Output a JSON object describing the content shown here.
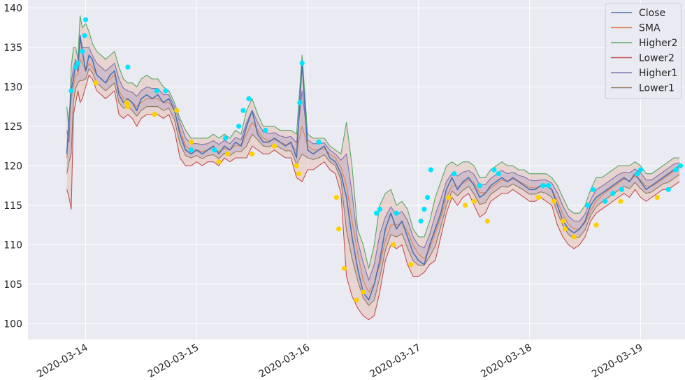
{
  "chart_data": {
    "type": "line",
    "title": "",
    "xlabel": "",
    "ylabel": "",
    "ylim": [
      98,
      141
    ],
    "xlim": [
      -0.52,
      5.4
    ],
    "grid": true,
    "legend_position": "top-right",
    "x_ticks": [
      {
        "value": 0,
        "label": "2020-03-14"
      },
      {
        "value": 1,
        "label": "2020-03-15"
      },
      {
        "value": 2,
        "label": "2020-03-16"
      },
      {
        "value": 3,
        "label": "2020-03-17"
      },
      {
        "value": 4,
        "label": "2020-03-18"
      },
      {
        "value": 5,
        "label": "2020-03-19"
      }
    ],
    "y_ticks": [
      100,
      105,
      110,
      115,
      120,
      125,
      130,
      135,
      140
    ],
    "x_unit": "days relative to 2020-03-14",
    "x": [
      -0.17,
      -0.15,
      -0.13,
      -0.11,
      -0.09,
      -0.07,
      -0.05,
      -0.03,
      0.0,
      0.03,
      0.06,
      0.1,
      0.14,
      0.18,
      0.22,
      0.26,
      0.3,
      0.34,
      0.38,
      0.42,
      0.46,
      0.5,
      0.55,
      0.6,
      0.65,
      0.7,
      0.75,
      0.8,
      0.85,
      0.9,
      0.95,
      1.0,
      1.05,
      1.1,
      1.15,
      1.2,
      1.25,
      1.3,
      1.35,
      1.4,
      1.45,
      1.5,
      1.55,
      1.6,
      1.65,
      1.7,
      1.75,
      1.8,
      1.85,
      1.9,
      1.95,
      2.0,
      2.05,
      2.1,
      2.15,
      2.2,
      2.25,
      2.3,
      2.35,
      2.4,
      2.45,
      2.5,
      2.55,
      2.6,
      2.65,
      2.7,
      2.75,
      2.8,
      2.85,
      2.9,
      2.95,
      3.0,
      3.05,
      3.1,
      3.15,
      3.2,
      3.25,
      3.3,
      3.35,
      3.4,
      3.45,
      3.5,
      3.55,
      3.6,
      3.65,
      3.7,
      3.75,
      3.8,
      3.85,
      3.9,
      3.95,
      4.0,
      4.05,
      4.1,
      4.15,
      4.2,
      4.25,
      4.3,
      4.35,
      4.4,
      4.45,
      4.5,
      4.55,
      4.6,
      4.65,
      4.7,
      4.75,
      4.8,
      4.85,
      4.9,
      4.95,
      5.0,
      5.05,
      5.1,
      5.15,
      5.2,
      5.25,
      5.3,
      5.35
    ],
    "series": [
      {
        "name": "Close",
        "color": "#4c72b0",
        "values": [
          121.5,
          126,
          129.5,
          131,
          133,
          132,
          136.5,
          134.5,
          132,
          134,
          133.5,
          131.5,
          131,
          130.5,
          131.5,
          132,
          129,
          128,
          128.5,
          128,
          127,
          128.5,
          129,
          128.5,
          129,
          128,
          128.5,
          127,
          124,
          122,
          121.5,
          122,
          121.5,
          122,
          122.5,
          121.5,
          122.5,
          122,
          123,
          122.5,
          125,
          127,
          124,
          123,
          123,
          123.5,
          123,
          122.5,
          123,
          121,
          133,
          122,
          121.5,
          122,
          122.5,
          121,
          120.5,
          119,
          116,
          111,
          107,
          104,
          103,
          105,
          108,
          112,
          114,
          112,
          113,
          111,
          109,
          108,
          107.5,
          110,
          112,
          114,
          117,
          118.5,
          117,
          118,
          118.5,
          117.5,
          116,
          116.5,
          117.5,
          118,
          118.5,
          118,
          118.5,
          118,
          117.5,
          117,
          117,
          117.5,
          117.5,
          117,
          115,
          113,
          112,
          111.5,
          112,
          113,
          115,
          116,
          116.5,
          117,
          117.5,
          118,
          118.5,
          118,
          119,
          118,
          117,
          117.5,
          118,
          118.5,
          119,
          119.5,
          120
        ]
      },
      {
        "name": "SMA",
        "color": "#dd8452",
        "values": [
          121,
          125,
          128.5,
          130,
          131.5,
          131.5,
          133.5,
          133,
          132,
          133,
          132.5,
          131.5,
          131,
          130.5,
          131,
          131.5,
          129.5,
          128.5,
          128.5,
          128,
          127.5,
          128,
          128.5,
          128.5,
          128.5,
          128,
          128,
          127,
          124.5,
          122.5,
          122,
          122,
          121.8,
          122,
          122.2,
          121.8,
          122.2,
          122,
          122.6,
          122.5,
          124,
          125.5,
          124.5,
          123.5,
          123.2,
          123.3,
          123,
          122.7,
          122.8,
          121.8,
          125,
          122.5,
          122,
          122,
          122.2,
          121.5,
          121,
          119.8,
          117.5,
          113,
          109,
          105.5,
          104,
          105,
          107.5,
          110.5,
          112.5,
          112.5,
          112.8,
          111.7,
          110,
          108.8,
          108.2,
          109.5,
          111.5,
          113.5,
          116,
          117.5,
          117.3,
          117.8,
          118.2,
          117.8,
          116.6,
          116.6,
          117.2,
          117.7,
          118.2,
          118,
          118.3,
          118.1,
          117.7,
          117.3,
          117.2,
          117.4,
          117.4,
          117,
          115.6,
          113.8,
          112.6,
          112,
          112,
          112.8,
          114.3,
          115.5,
          116.2,
          116.8,
          117.3,
          117.8,
          118.3,
          118.1,
          118.7,
          118.2,
          117.4,
          117.4,
          117.8,
          118.3,
          118.8,
          119.3,
          119.7
        ]
      },
      {
        "name": "Higher2",
        "color": "#55a868",
        "values": [
          127.5,
          124.5,
          132.5,
          135,
          135,
          133.5,
          139,
          137.5,
          138,
          137,
          135.5,
          134.5,
          134,
          133.5,
          134,
          134.5,
          132.5,
          131,
          130.5,
          130.5,
          130,
          131,
          131.5,
          131,
          131,
          130,
          129.5,
          128,
          126,
          124.5,
          123.5,
          123.5,
          123.5,
          123.5,
          124,
          123.5,
          124,
          123.5,
          124.5,
          124,
          127,
          128.5,
          126.5,
          125,
          125,
          125,
          124.5,
          124.5,
          124.5,
          124,
          134,
          124,
          123.5,
          123.5,
          123.5,
          122.5,
          122,
          121.5,
          125.5,
          120,
          112,
          110,
          107,
          110,
          115,
          116.5,
          117,
          115,
          115.5,
          114.5,
          112,
          111,
          111,
          113,
          116,
          118,
          120,
          120.5,
          120,
          120.5,
          120.5,
          120,
          118.5,
          118.5,
          119.5,
          120,
          120.5,
          120,
          120,
          119.5,
          119.5,
          119,
          119,
          119,
          119,
          118.5,
          117.5,
          116,
          114.5,
          114,
          114,
          115,
          117,
          118.5,
          118.5,
          119,
          119.5,
          120,
          120,
          120,
          120.5,
          120,
          119,
          119,
          119.5,
          120,
          120.5,
          121,
          121
        ]
      },
      {
        "name": "Lower2",
        "color": "#c44e52",
        "values": [
          117,
          116,
          114.5,
          126.5,
          128,
          129.5,
          128,
          128.5,
          130,
          131.5,
          131,
          129.5,
          129,
          128.5,
          129,
          129.5,
          126.5,
          126,
          126.5,
          126,
          125,
          126,
          126.5,
          126.5,
          126.5,
          126,
          126.5,
          124.5,
          121,
          120,
          120,
          120.5,
          120,
          120.5,
          120.5,
          120,
          121,
          120.5,
          121,
          121,
          121,
          122.5,
          122,
          121.5,
          121.5,
          122,
          121.5,
          121,
          121,
          118.5,
          118,
          119.5,
          119.5,
          120,
          120.5,
          119.5,
          119,
          116.5,
          106,
          103.5,
          102,
          101,
          100.5,
          101,
          104,
          108,
          110,
          109.5,
          110,
          107.5,
          106,
          106,
          106.5,
          107.5,
          108,
          111,
          114,
          116,
          115,
          116,
          116.5,
          115,
          113.5,
          114,
          115.5,
          116,
          116.5,
          116.5,
          117,
          116.5,
          116,
          115.5,
          115.5,
          116,
          115.5,
          115,
          112.5,
          111,
          110,
          109.5,
          110,
          111,
          113,
          114,
          114.5,
          115,
          115.5,
          116,
          116.5,
          116,
          117,
          116,
          115.5,
          116,
          116.5,
          117,
          117,
          117.5,
          118
        ]
      },
      {
        "name": "Higher1",
        "color": "#8172b3",
        "values": [
          124.5,
          123,
          130.5,
          132.5,
          133.5,
          132.5,
          136.5,
          135,
          135,
          135,
          134,
          133,
          132.5,
          132,
          132.5,
          133,
          131,
          129.8,
          129.5,
          129.3,
          128.8,
          129.5,
          130,
          129.8,
          129.8,
          129,
          129,
          127.5,
          125.5,
          123.5,
          122.8,
          122.8,
          122.7,
          122.8,
          123.2,
          122.7,
          123.2,
          122.8,
          123.6,
          123.3,
          125.5,
          127,
          125.5,
          124.3,
          124.1,
          124.2,
          123.8,
          123.6,
          123.7,
          122.9,
          129.5,
          123.3,
          122.8,
          122.8,
          122.9,
          122,
          121.5,
          120.7,
          121.5,
          116.5,
          110.5,
          107.8,
          105.5,
          107.5,
          111.3,
          113.5,
          114.8,
          113.8,
          114.2,
          113.1,
          111,
          109.9,
          109.6,
          111.3,
          113.8,
          115.8,
          118,
          119,
          118.7,
          119.2,
          119.4,
          118.9,
          117.6,
          117.6,
          118.4,
          118.9,
          119.4,
          119,
          119.2,
          118.8,
          118.6,
          118.2,
          118.1,
          118.2,
          118.2,
          117.8,
          116.6,
          114.9,
          113.6,
          113,
          113,
          113.9,
          115.7,
          117,
          117.4,
          117.9,
          118.4,
          118.9,
          119.2,
          119.1,
          119.6,
          119.1,
          118.2,
          118.2,
          118.7,
          119.2,
          119.7,
          120.2,
          120.4
        ]
      },
      {
        "name": "Lower1",
        "color": "#937860",
        "values": [
          119,
          120.5,
          121.5,
          128.2,
          129.8,
          130.5,
          130.8,
          130.8,
          131,
          132.3,
          131.8,
          130.5,
          130,
          129.5,
          130,
          130.5,
          128,
          127.3,
          127.5,
          127,
          126.3,
          127,
          127.5,
          127.5,
          127.5,
          127,
          127.3,
          125.8,
          122.8,
          121.3,
          121,
          121.3,
          120.9,
          121.3,
          121.4,
          120.9,
          121.6,
          121.3,
          121.8,
          121.8,
          122.5,
          124,
          123.3,
          122.5,
          122.4,
          122.7,
          122.3,
          121.9,
          121.9,
          120.2,
          121.5,
          121,
          120.8,
          121,
          121.4,
          120.5,
          120,
          118.2,
          111.8,
          108.3,
          105.5,
          103.3,
          102.3,
          103,
          105.8,
          109.3,
          111.3,
          111,
          111.4,
          109.6,
          108,
          107.4,
          107.4,
          108.5,
          109.8,
          112.3,
          115,
          116.8,
          116.2,
          116.9,
          117.4,
          116.4,
          115.1,
          115.3,
          116.4,
          116.9,
          117.4,
          117.3,
          117.7,
          117.3,
          116.9,
          116.4,
          116.4,
          116.7,
          116.5,
          116,
          114.1,
          112.4,
          111.3,
          110.8,
          111,
          111.9,
          113.7,
          114.8,
          115.4,
          115.9,
          116.4,
          116.9,
          117.4,
          117.1,
          117.9,
          117.1,
          116.5,
          116.7,
          117.2,
          117.7,
          117.9,
          118.4,
          118.9
        ]
      }
    ],
    "markers_high": {
      "color": "#00e5ff",
      "points": [
        [
          -0.13,
          129.5
        ],
        [
          -0.09,
          132.5
        ],
        [
          -0.07,
          133
        ],
        [
          -0.03,
          134.5
        ],
        [
          -0.01,
          136.5
        ],
        [
          0.0,
          138.5
        ],
        [
          0.38,
          132.5
        ],
        [
          0.64,
          129.5
        ],
        [
          0.72,
          129.5
        ],
        [
          0.95,
          122
        ],
        [
          1.16,
          122
        ],
        [
          1.26,
          123.5
        ],
        [
          1.38,
          125
        ],
        [
          1.42,
          127
        ],
        [
          1.47,
          128.5
        ],
        [
          1.62,
          124.5
        ],
        [
          1.93,
          128
        ],
        [
          1.95,
          133
        ],
        [
          2.1,
          123
        ],
        [
          2.62,
          114
        ],
        [
          2.65,
          114.5
        ],
        [
          2.8,
          114
        ],
        [
          3.02,
          113
        ],
        [
          3.05,
          114.5
        ],
        [
          3.08,
          116
        ],
        [
          3.11,
          119.5
        ],
        [
          3.32,
          119
        ],
        [
          3.55,
          117.5
        ],
        [
          3.68,
          119.5
        ],
        [
          3.72,
          119
        ],
        [
          4.12,
          117.5
        ],
        [
          4.17,
          117.5
        ],
        [
          4.52,
          115
        ],
        [
          4.57,
          117
        ],
        [
          4.68,
          115.5
        ],
        [
          4.75,
          116.5
        ],
        [
          4.83,
          117
        ],
        [
          4.97,
          119
        ],
        [
          5.0,
          119.5
        ],
        [
          5.25,
          117
        ],
        [
          5.32,
          119.5
        ],
        [
          5.36,
          120
        ]
      ]
    },
    "markers_low": {
      "color": "#ffd000",
      "points": [
        [
          0.09,
          130.5
        ],
        [
          0.37,
          128
        ],
        [
          0.38,
          127.5
        ],
        [
          0.62,
          126.5
        ],
        [
          0.82,
          127
        ],
        [
          0.95,
          123
        ],
        [
          1.2,
          120.5
        ],
        [
          1.28,
          121.5
        ],
        [
          1.5,
          121.5
        ],
        [
          1.7,
          122.5
        ],
        [
          1.9,
          120
        ],
        [
          1.92,
          119
        ],
        [
          2.26,
          116
        ],
        [
          2.28,
          112
        ],
        [
          2.33,
          107
        ],
        [
          2.44,
          103
        ],
        [
          2.5,
          104
        ],
        [
          2.77,
          110
        ],
        [
          2.93,
          107.5
        ],
        [
          3.27,
          116
        ],
        [
          3.42,
          115
        ],
        [
          3.5,
          115.5
        ],
        [
          3.62,
          113
        ],
        [
          4.08,
          116
        ],
        [
          4.22,
          115.5
        ],
        [
          4.3,
          113
        ],
        [
          4.32,
          112
        ],
        [
          4.4,
          111
        ],
        [
          4.6,
          112.5
        ],
        [
          4.82,
          115.5
        ],
        [
          5.15,
          116
        ]
      ]
    }
  },
  "legend": {
    "items": [
      {
        "label": "Close",
        "color": "#4c72b0"
      },
      {
        "label": "SMA",
        "color": "#dd8452"
      },
      {
        "label": "Higher2",
        "color": "#55a868"
      },
      {
        "label": "Lower2",
        "color": "#c44e52"
      },
      {
        "label": "Higher1",
        "color": "#8172b3"
      },
      {
        "label": "Lower1",
        "color": "#937860"
      }
    ]
  },
  "colors": {
    "plot_background": "#eaeaf2",
    "grid": "#ffffff",
    "band_outer_fill": "#dd8452",
    "band_inner_fill": "#8172b3"
  }
}
